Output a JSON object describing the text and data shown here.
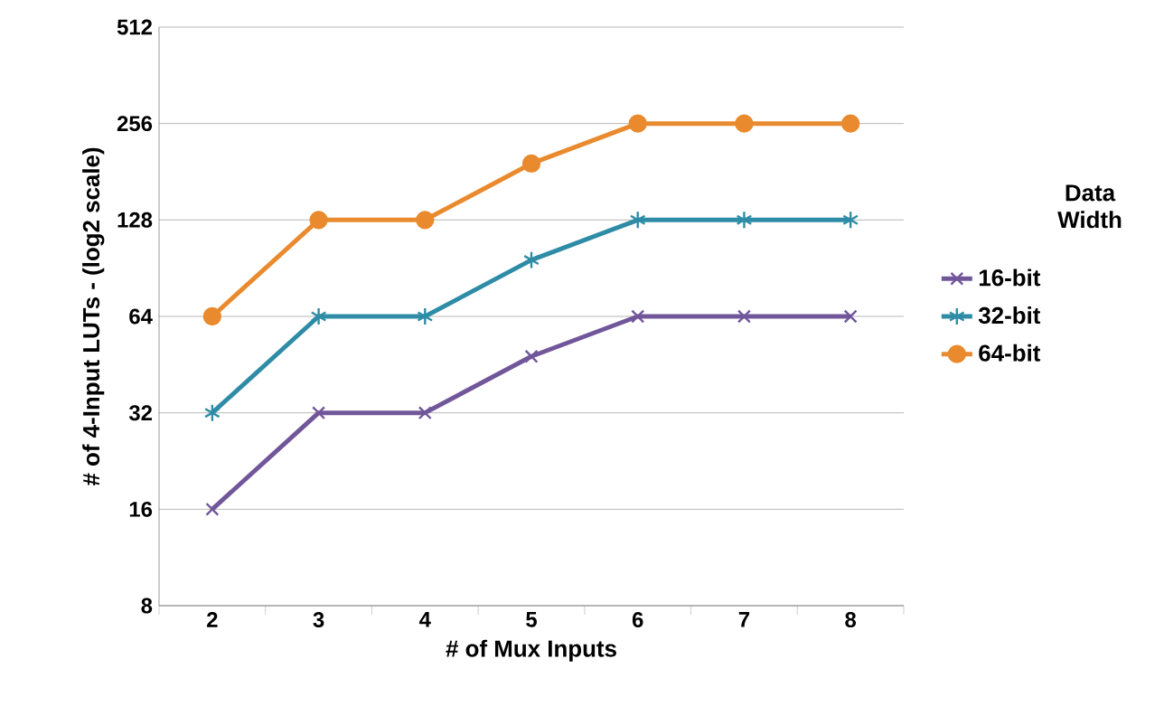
{
  "chart_data": {
    "type": "line",
    "xlabel": "# of Mux Inputs",
    "ylabel": "# of 4-Input LUTs - (log2 scale)",
    "legend_title": "Data Width",
    "categories": [
      "2",
      "3",
      "4",
      "5",
      "6",
      "7",
      "8"
    ],
    "series": [
      {
        "name": "16-bit",
        "color": "#71569a",
        "marker": "cross",
        "values": [
          16,
          32,
          32,
          48,
          64,
          64,
          64
        ]
      },
      {
        "name": "32-bit",
        "color": "#2e8ca6",
        "marker": "cross",
        "values": [
          32,
          64,
          64,
          96,
          128,
          128,
          128
        ]
      },
      {
        "name": "64-bit",
        "color": "#e98a2e",
        "marker": "circle",
        "values": [
          64,
          128,
          128,
          192,
          256,
          256,
          256
        ]
      }
    ],
    "log": "y",
    "ylim": [
      8,
      512
    ],
    "yticks": [
      8,
      16,
      32,
      64,
      128,
      256,
      512
    ],
    "grid": "y",
    "legend": "right",
    "line_style": "solid"
  }
}
